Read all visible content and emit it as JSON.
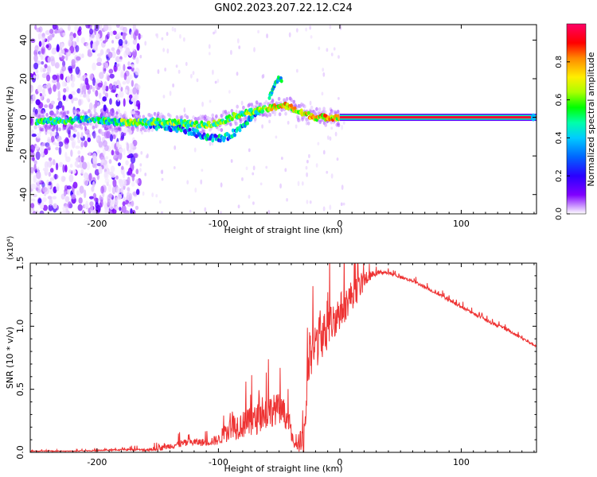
{
  "title": "GN02.2023.207.22.12.C24",
  "chart_data": [
    {
      "type": "heatmap",
      "name": "spectrogram",
      "xlabel": "Height of straight line (km)",
      "ylabel": "Frequency (Hz)",
      "xlim": [
        -255,
        162
      ],
      "ylim": [
        -50,
        48
      ],
      "xticks": [
        -200,
        -100,
        0,
        100
      ],
      "xtick_labels": [
        "-200",
        "-100",
        "0",
        "100"
      ],
      "yticks": [
        40,
        20,
        0,
        -20,
        -40
      ],
      "ytick_labels": [
        "40",
        "20",
        "0",
        "-20",
        "-40"
      ],
      "colorbar": {
        "label": "Normalized spectral amplitude",
        "range": [
          0,
          1
        ],
        "ticks": [
          0.0,
          0.2,
          0.4,
          0.6,
          0.8
        ],
        "tick_labels": [
          "0.0",
          "0.2",
          "0.4",
          "0.6",
          "0.8"
        ],
        "colors": [
          "#ffffff",
          "#cc99ff",
          "#8000ff",
          "#2a00ff",
          "#0066ff",
          "#00ccff",
          "#00ffaa",
          "#00ff00",
          "#aaff00",
          "#ffee00",
          "#ff8800",
          "#ff0000",
          "#ff0066"
        ]
      },
      "ridge": {
        "x": [
          -250,
          -230,
          -210,
          -190,
          -170,
          -150,
          -130,
          -115,
          -100,
          -90,
          -80,
          -70,
          -62,
          -55,
          -50,
          -45,
          -40,
          -35,
          -30,
          -20,
          -10,
          0
        ],
        "freq": [
          -2,
          -2,
          -1,
          -2,
          -3,
          -2,
          -3,
          -4,
          -3,
          0,
          2,
          3,
          4,
          5,
          6,
          6,
          5,
          3,
          2,
          0,
          0,
          0
        ]
      },
      "lower_branch": {
        "x": [
          -160,
          -145,
          -130,
          -120,
          -110,
          -100,
          -92,
          -85,
          -78,
          -72,
          -66
        ],
        "freq": [
          -4,
          -5,
          -6,
          -8,
          -10,
          -11,
          -10,
          -7,
          -3,
          1,
          4
        ]
      },
      "upper_spike": {
        "x": [
          -58,
          -55,
          -52,
          -50,
          -48
        ],
        "freq": [
          10,
          15,
          19,
          20,
          19
        ]
      },
      "carrier": {
        "x_start": 0,
        "x_end": 162,
        "freq": 0
      },
      "noise_region": [
        -255,
        -165
      ]
    },
    {
      "type": "line",
      "name": "snr",
      "xlabel": "Height of straight line (km)",
      "ylabel": "SNR (10 * v/v)",
      "scale_note": "(x10⁴)",
      "xlim": [
        -255,
        162
      ],
      "ylim": [
        0,
        1.5
      ],
      "xticks": [
        -200,
        -100,
        0,
        100
      ],
      "xtick_labels": [
        "-200",
        "-100",
        "0",
        "100"
      ],
      "yticks": [
        0.0,
        0.5,
        1.0,
        1.5
      ],
      "ytick_labels": [
        "0.0",
        "0.5",
        "1.0",
        "1.5"
      ],
      "color": "#ee3333",
      "envelope": {
        "x": [
          -255,
          -220,
          -200,
          -180,
          -160,
          -150,
          -140,
          -130,
          -120,
          -110,
          -100,
          -90,
          -80,
          -70,
          -60,
          -50,
          -42,
          -38,
          -35,
          -30,
          -25,
          -20,
          -15,
          -10,
          -5,
          0,
          5,
          10,
          15,
          20,
          25,
          30,
          35,
          40,
          60,
          80,
          100,
          120,
          140,
          162
        ],
        "mean": [
          0.01,
          0.01,
          0.015,
          0.02,
          0.02,
          0.03,
          0.05,
          0.07,
          0.08,
          0.08,
          0.1,
          0.2,
          0.22,
          0.25,
          0.32,
          0.35,
          0.25,
          0.06,
          0.05,
          0.08,
          0.75,
          0.85,
          0.92,
          0.98,
          1.05,
          1.12,
          1.18,
          1.25,
          1.3,
          1.36,
          1.4,
          1.42,
          1.43,
          1.42,
          1.36,
          1.26,
          1.15,
          1.05,
          0.96,
          0.84
        ],
        "noise": [
          0.005,
          0.005,
          0.008,
          0.01,
          0.015,
          0.03,
          0.04,
          0.05,
          0.05,
          0.05,
          0.07,
          0.18,
          0.18,
          0.2,
          0.22,
          0.2,
          0.15,
          0.05,
          0.04,
          0.3,
          0.35,
          0.35,
          0.3,
          0.28,
          0.25,
          0.25,
          0.22,
          0.2,
          0.18,
          0.12,
          0.06,
          0.03,
          0.03,
          0.02,
          0.02,
          0.02,
          0.02,
          0.02,
          0.02,
          0.02
        ]
      }
    }
  ]
}
